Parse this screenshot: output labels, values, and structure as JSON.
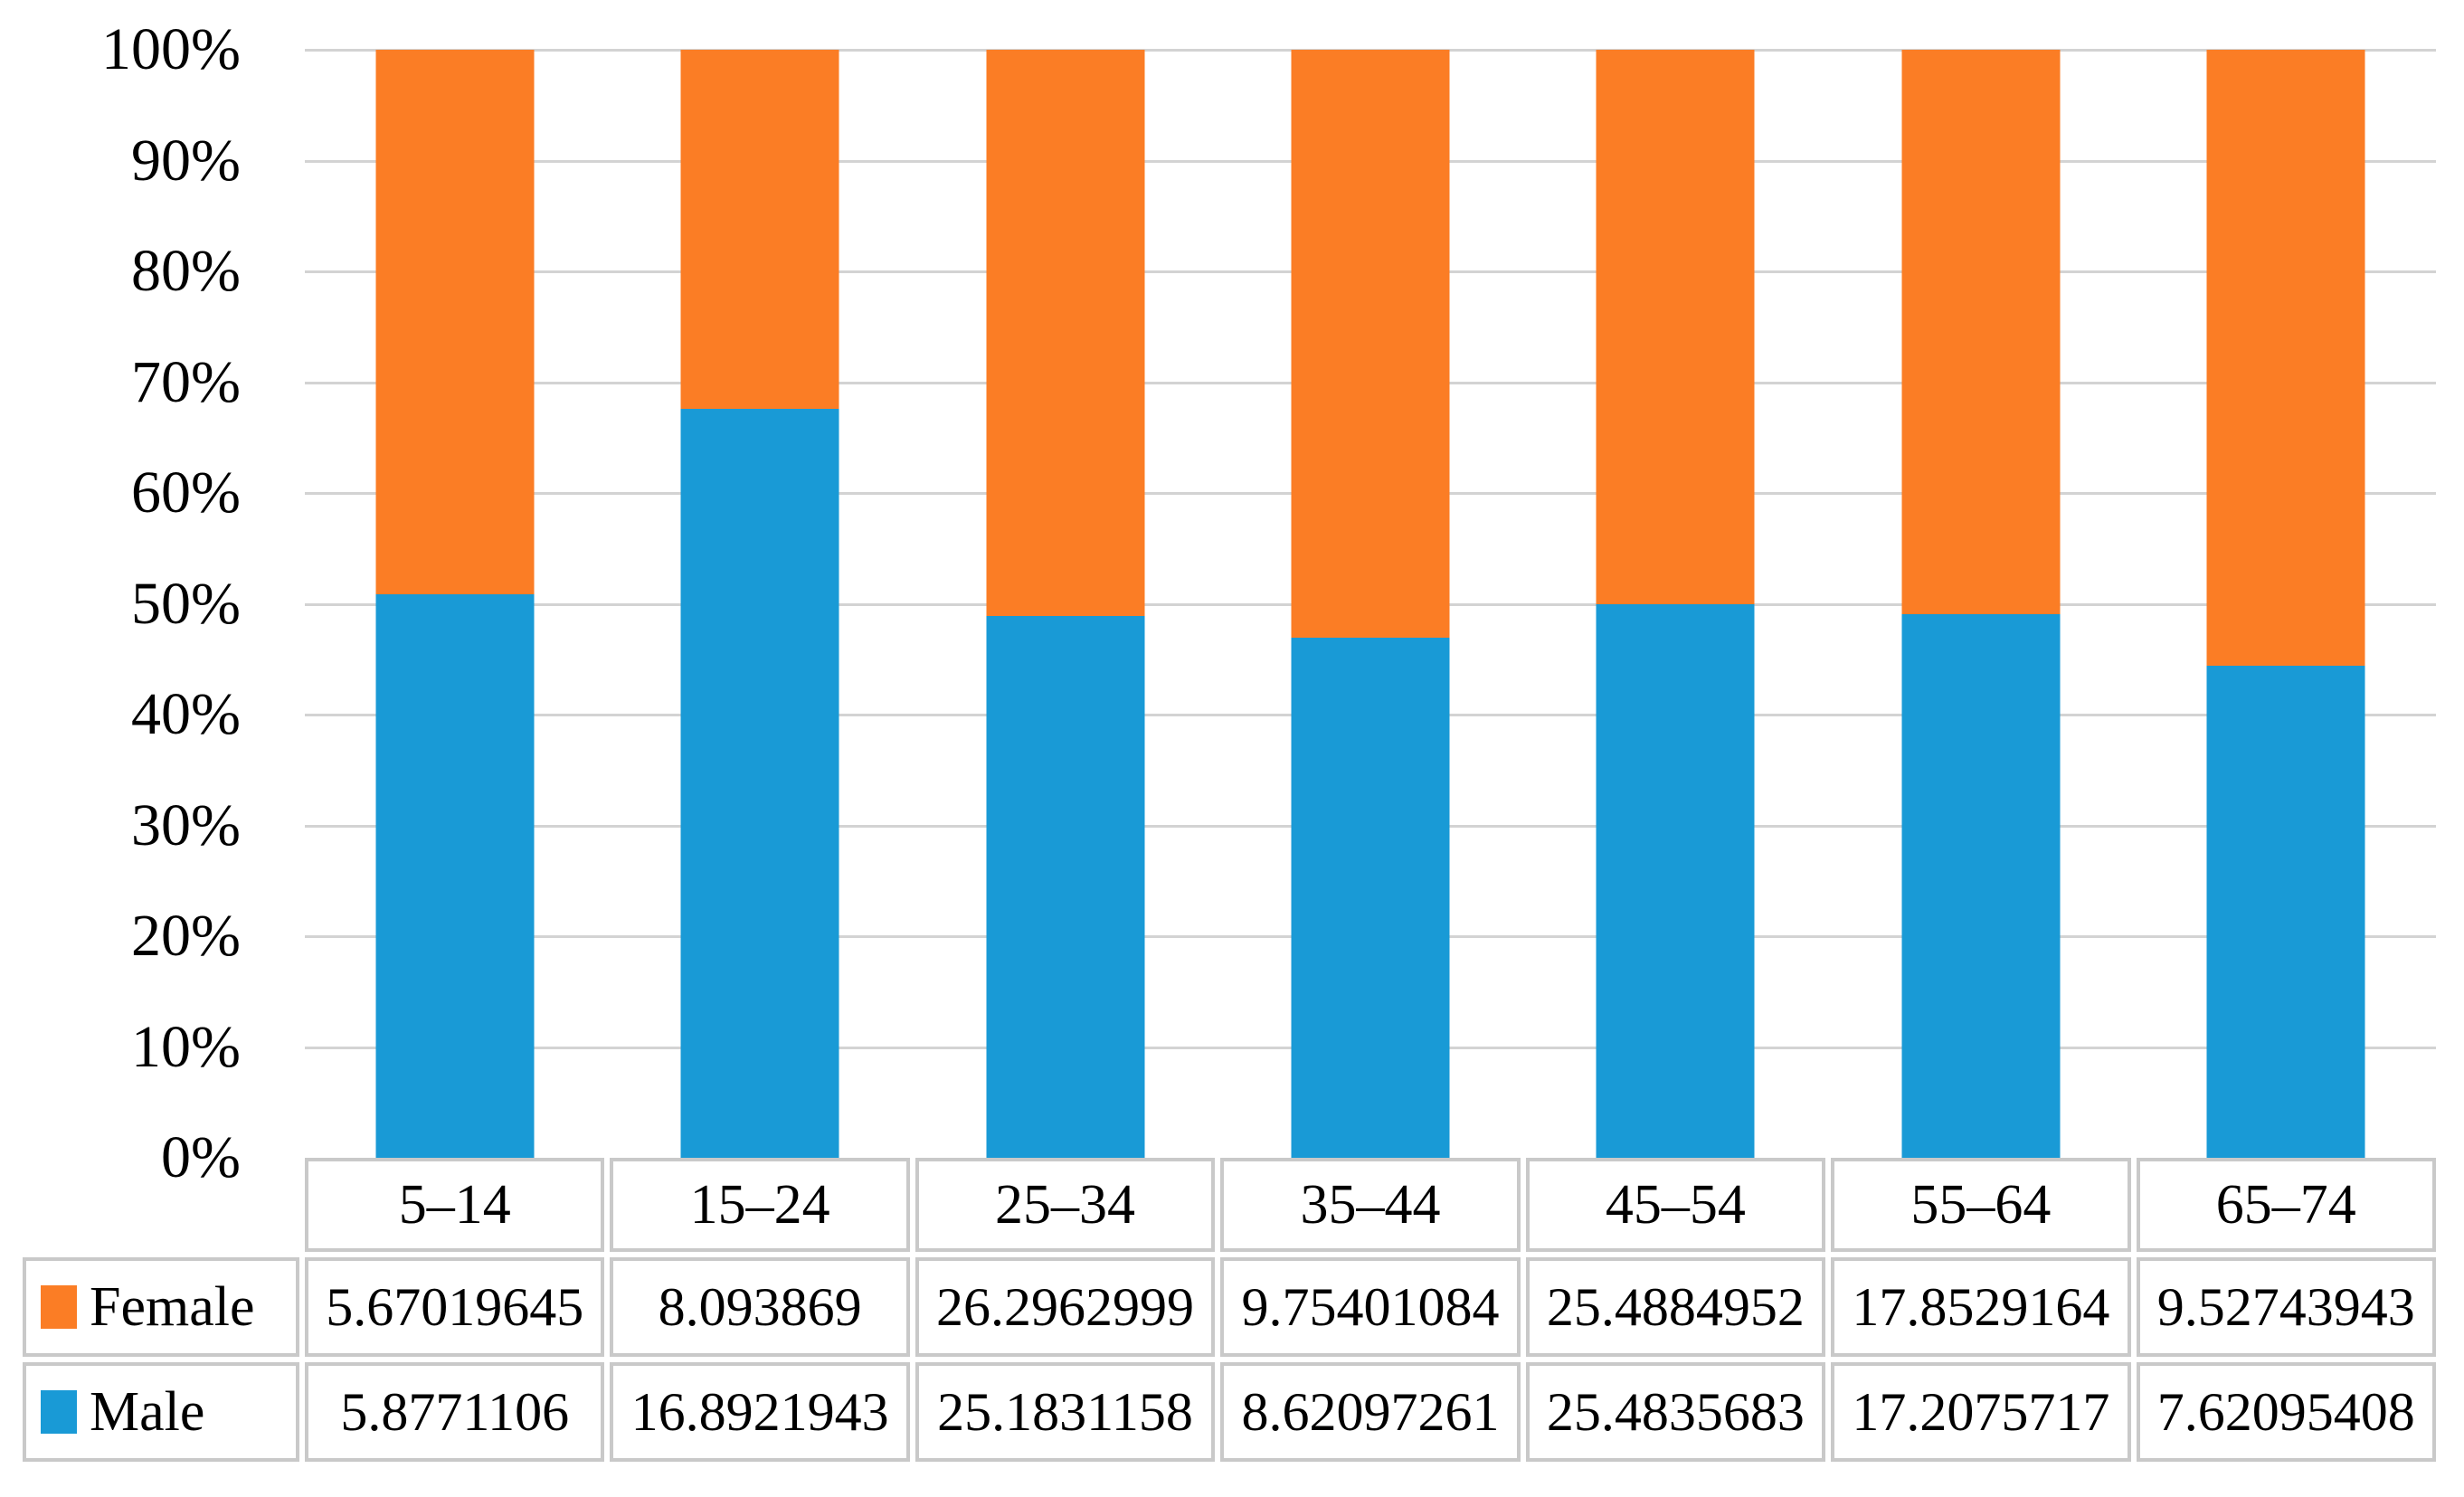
{
  "figure": {
    "background_color": "#FFFFFF",
    "text_color": "#000000",
    "gridline_color": "#D3D3D3",
    "table_border_color": "#C9C9C9"
  },
  "chart_data": {
    "type": "bar",
    "subtype": "100-percent-stacked-column",
    "title": "",
    "xlabel": "",
    "ylabel": "",
    "categories": [
      "5–14",
      "15–24",
      "25–34",
      "35–44",
      "45–54",
      "55–64",
      "65–74"
    ],
    "series": [
      {
        "name": "Female",
        "color": "#FB7D25",
        "values": [
          5.67019645,
          8.093869,
          26.2962999,
          9.75401084,
          25.4884952,
          17.8529164,
          9.52743943
        ]
      },
      {
        "name": "Male",
        "color": "#199AD6",
        "values": [
          5.8771106,
          16.8921943,
          25.1831158,
          8.62097261,
          25.4835683,
          17.2075717,
          7.62095408
        ]
      }
    ],
    "stack_order_bottom_to_top": [
      "Male",
      "Female"
    ],
    "y_axis": {
      "min": 0,
      "max": 100,
      "tick_step": 10,
      "format": "percent",
      "tick_labels_top_to_bottom": [
        "100%",
        "90%",
        "80%",
        "70%",
        "60%",
        "50%",
        "40%",
        "30%",
        "20%",
        "10%",
        "0%"
      ]
    },
    "grid": "horizontal",
    "legend": {
      "position": "data-table-left-column",
      "entries": [
        {
          "label": "Female",
          "color": "#FB7D25"
        },
        {
          "label": "Male",
          "color": "#199AD6"
        }
      ]
    },
    "data_table": {
      "shown": true,
      "rows": [
        {
          "label": "Female",
          "display_values": [
            "5.67019645",
            "8.093869",
            "26.2962999",
            "9.75401084",
            "25.4884952",
            "17.8529164",
            "9.52743943"
          ]
        },
        {
          "label": "Male",
          "display_values": [
            "5.8771106",
            "16.8921943",
            "25.1831158",
            "8.62097261",
            "25.4835683",
            "17.2075717",
            "7.62095408"
          ]
        }
      ]
    }
  }
}
